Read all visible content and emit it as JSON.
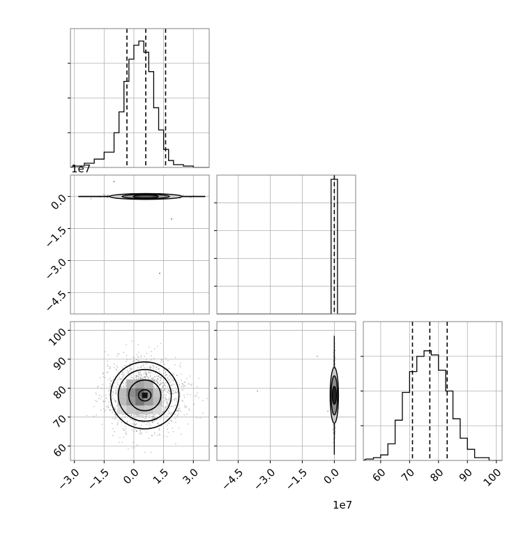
{
  "chart_data": {
    "type": "corner",
    "grid": true,
    "quantile_lines": "dashed",
    "colors": {
      "ink": "#000000",
      "grid": "#b0b0b0",
      "frame": "#808080"
    },
    "panels": [
      {
        "id": "p00",
        "row": 0,
        "col": 0,
        "type": "histogram",
        "label": "parameter 1 marginal",
        "x": [
          -3.0,
          -2.5,
          -2.0,
          -1.5,
          -1.0,
          -0.75,
          -0.5,
          -0.25,
          0.0,
          0.25,
          0.5,
          0.75,
          1.0,
          1.25,
          1.5,
          1.75,
          2.0,
          2.5,
          3.0
        ],
        "counts": [
          0.01,
          0.03,
          0.06,
          0.11,
          0.25,
          0.4,
          0.62,
          0.78,
          0.88,
          0.91,
          0.83,
          0.69,
          0.43,
          0.27,
          0.13,
          0.05,
          0.02,
          0.01,
          0.0
        ],
        "quantiles": [
          -0.35,
          0.6,
          1.6
        ],
        "xlim": [
          -3.2,
          3.8
        ],
        "ylim": [
          0,
          1.0
        ],
        "yticks": [
          0.25,
          0.5,
          0.75
        ]
      },
      {
        "id": "p10",
        "row": 1,
        "col": 0,
        "type": "2d",
        "label": "parameter 1 vs parameter 2",
        "xlim": [
          -3.2,
          3.8
        ],
        "ylim": [
          -5.5,
          1.0
        ],
        "yticks": [
          0.0,
          -1.5,
          -3.0,
          -4.5
        ],
        "ytick_labels": [
          "0.0",
          "−1.5",
          "−3.0",
          "−4.5"
        ],
        "offset_label": "1e7"
      },
      {
        "id": "p11",
        "row": 1,
        "col": 1,
        "type": "histogram",
        "label": "parameter 2 marginal",
        "spike_center": 0.0,
        "spike_halfwidth": 0.15,
        "spike_height": 0.97,
        "quantiles": [
          -0.15,
          0.0,
          0.15
        ],
        "xlim": [
          -5.5,
          1.0
        ],
        "ylim": [
          0,
          1.0
        ],
        "yticks": [
          0.2,
          0.4,
          0.6,
          0.8
        ]
      },
      {
        "id": "p20",
        "row": 2,
        "col": 0,
        "type": "2d",
        "label": "parameter 1 vs parameter 3",
        "xlim": [
          -3.2,
          3.8
        ],
        "ylim": [
          55,
          103
        ],
        "xticks": [
          -3.0,
          -1.5,
          0.0,
          1.5,
          3.0
        ],
        "xtick_labels": [
          "−3.0",
          "−1.5",
          "0.0",
          "1.5",
          "3.0"
        ],
        "yticks": [
          60,
          70,
          80,
          90,
          100
        ],
        "ytick_labels": [
          "60",
          "70",
          "80",
          "90",
          "100"
        ],
        "center": [
          0.55,
          77.5
        ]
      },
      {
        "id": "p21",
        "row": 2,
        "col": 1,
        "type": "2d",
        "label": "parameter 2 vs parameter 3",
        "xlim": [
          -5.5,
          1.0
        ],
        "ylim": [
          55,
          103
        ],
        "xticks": [
          -4.5,
          -3.0,
          -1.5,
          0.0
        ],
        "xtick_labels": [
          "−4.5",
          "−3.0",
          "−1.5",
          "0.0"
        ],
        "offset_label": "1e7"
      },
      {
        "id": "p22",
        "row": 2,
        "col": 2,
        "type": "histogram",
        "label": "parameter 3 marginal",
        "x": [
          55,
          57.5,
          60,
          62.5,
          65,
          67.5,
          70,
          72.5,
          75,
          77.5,
          80,
          82.5,
          85,
          87.5,
          90,
          92.5,
          95,
          97.5
        ],
        "counts": [
          0.01,
          0.02,
          0.04,
          0.12,
          0.29,
          0.49,
          0.64,
          0.75,
          0.79,
          0.76,
          0.65,
          0.5,
          0.3,
          0.16,
          0.08,
          0.02,
          0.02,
          0.0
        ],
        "quantiles": [
          71.0,
          77.0,
          83.0
        ],
        "xlim": [
          54,
          102
        ],
        "ylim": [
          0,
          1.0
        ],
        "xticks": [
          60,
          70,
          80,
          90,
          100
        ],
        "xtick_labels": [
          "60",
          "70",
          "80",
          "90",
          "100"
        ],
        "yticks": [
          0.25,
          0.5,
          0.75
        ]
      }
    ]
  }
}
